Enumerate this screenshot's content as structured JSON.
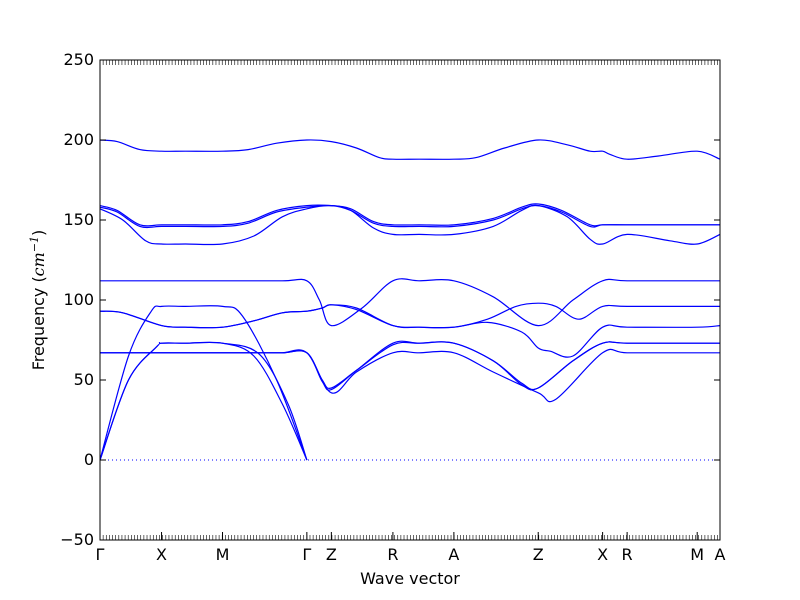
{
  "chart_data": {
    "type": "line",
    "title": "",
    "xlabel": "Wave vector",
    "ylabel_prefix": "Frequency (",
    "ylabel_unit": "cm",
    "ylabel_exp": "−1",
    "ylabel_suffix": ")",
    "ylim": [
      -50,
      250
    ],
    "yticks": [
      -50,
      0,
      50,
      100,
      150,
      200,
      250
    ],
    "ytick_labels": [
      "−50",
      "0",
      "50",
      "100",
      "150",
      "200",
      "250"
    ],
    "xlim": [
      0,
      10.88
    ],
    "xticks": [
      {
        "label": "Γ",
        "pos": 0.0
      },
      {
        "label": "X",
        "pos": 1.08
      },
      {
        "label": "M",
        "pos": 2.15
      },
      {
        "label": "Γ",
        "pos": 3.63
      },
      {
        "label": "Z",
        "pos": 4.06
      },
      {
        "label": "R",
        "pos": 5.14
      },
      {
        "label": "A",
        "pos": 6.21
      },
      {
        "label": "Z",
        "pos": 7.69
      },
      {
        "label": "X",
        "pos": 8.82
      },
      {
        "label": "R",
        "pos": 9.25
      },
      {
        "label": "M",
        "pos": 10.48
      },
      {
        "label": "A",
        "pos": 10.88
      }
    ],
    "zero_line": true,
    "line_color": "#0000ff",
    "series": [
      {
        "x": [
          0,
          0.5,
          1.0,
          1.08,
          1.5,
          2.15,
          2.7,
          3.2,
          3.63
        ],
        "y": [
          0,
          50,
          71,
          73,
          73,
          73,
          65,
          35,
          0
        ]
      },
      {
        "x": [
          0,
          0.5,
          1.0,
          1.08,
          1.5,
          2.15,
          2.8,
          3.3,
          3.63
        ],
        "y": [
          0,
          50,
          71,
          73,
          73,
          73,
          66,
          35,
          0
        ]
      },
      {
        "x": [
          0,
          0.5,
          0.9,
          1.08,
          1.5,
          2.15,
          2.5,
          3.1,
          3.63
        ],
        "y": [
          0,
          65,
          93,
          96,
          96,
          96,
          90,
          50,
          0
        ]
      },
      {
        "x": [
          0,
          0.5,
          1.08,
          1.5,
          2.15,
          2.7,
          3.2,
          3.63,
          4.06,
          4.5,
          5.14,
          5.6,
          6.21,
          6.9,
          7.69,
          8.0,
          8.82,
          9.25,
          10.48,
          10.88
        ],
        "y": [
          67,
          67,
          67,
          67,
          67,
          67,
          67,
          67,
          42,
          55,
          67,
          67,
          67,
          55,
          42,
          38,
          67,
          67,
          67,
          67
        ]
      },
      {
        "x": [
          0,
          0.5,
          1.08,
          1.5,
          2.15,
          2.7,
          3.2,
          3.63,
          3.9,
          4.06,
          4.5,
          5.14,
          5.6,
          6.21,
          6.9,
          7.4,
          7.69,
          8.3,
          8.82,
          9.25,
          10.48,
          10.88
        ],
        "y": [
          67,
          67,
          67,
          67,
          67,
          67,
          67,
          67,
          50,
          45,
          56,
          72,
          73,
          73,
          62,
          48,
          45,
          62,
          73,
          73,
          73,
          73
        ]
      },
      {
        "x": [
          0,
          0.5,
          1.08,
          1.5,
          2.15,
          2.7,
          3.2,
          3.63,
          3.9,
          4.06,
          4.5,
          5.14,
          5.6,
          6.21,
          6.9,
          7.4,
          7.69,
          8.3,
          8.82,
          9.25,
          10.48,
          10.88
        ],
        "y": [
          67,
          67,
          67,
          67,
          67,
          67,
          67,
          67,
          49,
          44,
          56,
          73,
          73,
          73,
          62,
          47,
          45,
          62,
          73,
          73,
          73,
          73
        ]
      },
      {
        "x": [
          0,
          0.4,
          1.08,
          1.5,
          2.15,
          2.7,
          3.2,
          3.63,
          3.9,
          4.06,
          4.5,
          5.14,
          5.6,
          6.21,
          6.8,
          7.4,
          7.69,
          7.9,
          8.3,
          8.82,
          9.25,
          10.48,
          10.88
        ],
        "y": [
          93,
          92,
          84,
          83,
          83,
          87,
          92,
          93,
          95,
          97,
          94,
          84,
          83,
          83,
          86,
          80,
          70,
          68,
          65,
          83,
          83,
          83,
          84
        ]
      },
      {
        "x": [
          0,
          0.4,
          1.08,
          1.5,
          2.15,
          2.7,
          3.2,
          3.63,
          3.9,
          4.06,
          4.5,
          5.14,
          5.6,
          6.21,
          6.8,
          7.3,
          7.69,
          8.0,
          8.4,
          8.82,
          9.25,
          10.48,
          10.88
        ],
        "y": [
          93,
          92,
          84,
          83,
          83,
          87,
          92,
          93,
          95,
          97,
          95,
          84,
          83,
          83,
          88,
          96,
          98,
          96,
          88,
          96,
          96,
          96,
          96
        ]
      },
      {
        "x": [
          0,
          1.08,
          2.15,
          3.2,
          3.63,
          3.85,
          4.06,
          4.6,
          5.14,
          5.6,
          6.21,
          6.9,
          7.69,
          8.3,
          8.82,
          9.25,
          10.48,
          10.88
        ],
        "y": [
          112,
          112,
          112,
          112,
          112,
          100,
          84,
          95,
          112,
          112,
          112,
          102,
          84,
          100,
          112,
          112,
          112,
          112
        ]
      },
      {
        "x": [
          0,
          0.3,
          0.7,
          1.08,
          1.5,
          2.15,
          2.6,
          3.1,
          3.63,
          4.06,
          4.4,
          4.8,
          5.14,
          5.6,
          6.21,
          6.9,
          7.4,
          7.69,
          8.1,
          8.6,
          8.82,
          9.25,
          10.0,
          10.48,
          10.88
        ],
        "y": [
          158,
          155,
          146,
          146,
          146,
          146,
          148,
          155,
          158,
          159,
          156,
          148,
          146,
          146,
          146,
          150,
          157,
          159,
          155,
          146,
          147,
          147,
          147,
          147,
          147
        ]
      },
      {
        "x": [
          0,
          0.3,
          0.7,
          1.08,
          1.5,
          2.15,
          2.6,
          3.1,
          3.63,
          4.06,
          4.4,
          4.8,
          5.14,
          5.6,
          6.21,
          6.9,
          7.4,
          7.69,
          8.1,
          8.6,
          8.82,
          9.25,
          10.0,
          10.48,
          10.88
        ],
        "y": [
          159,
          156,
          147,
          147,
          147,
          147,
          149,
          156,
          159,
          159,
          157,
          149,
          147,
          147,
          147,
          151,
          158,
          160,
          156,
          147,
          147,
          147,
          147,
          147,
          147
        ]
      },
      {
        "x": [
          0,
          0.4,
          0.8,
          1.08,
          1.5,
          2.15,
          2.7,
          3.2,
          3.63,
          4.06,
          4.4,
          4.8,
          5.14,
          5.6,
          6.21,
          6.9,
          7.4,
          7.69,
          8.2,
          8.6,
          8.82,
          9.25,
          10.0,
          10.48,
          10.88
        ],
        "y": [
          157,
          150,
          137,
          135,
          135,
          135,
          140,
          152,
          157,
          159,
          156,
          145,
          141,
          141,
          141,
          146,
          156,
          159,
          152,
          138,
          135,
          141,
          137,
          135,
          141
        ]
      },
      {
        "x": [
          0,
          0.3,
          0.7,
          1.08,
          1.5,
          2.15,
          2.6,
          3.1,
          3.63,
          4.06,
          4.5,
          4.9,
          5.14,
          5.6,
          6.21,
          6.6,
          7.1,
          7.69,
          8.2,
          8.6,
          8.82,
          8.95,
          9.25,
          9.8,
          10.48,
          10.88
        ],
        "y": [
          200,
          199,
          194,
          193,
          193,
          193,
          194,
          198,
          200,
          199,
          195,
          189,
          188,
          188,
          188,
          189,
          195,
          200,
          197,
          193,
          193,
          191,
          188,
          190,
          193,
          188
        ]
      }
    ]
  }
}
